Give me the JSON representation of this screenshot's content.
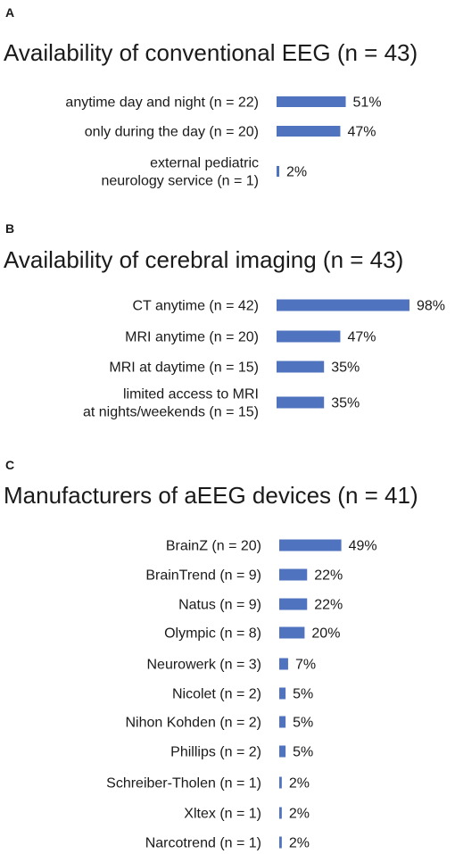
{
  "colors": {
    "bar": "#4f73be",
    "text": "#1a1a1a"
  },
  "chart_data": [
    {
      "type": "bar",
      "orientation": "horizontal",
      "panel": "A",
      "title": "Availability of conventional EEG (n = 43)",
      "categories": [
        [
          "anytime day and night (n = 22)"
        ],
        [
          "only during the day (n = 20)"
        ],
        [
          "external pediatric",
          "neurology service (n = 1)"
        ]
      ],
      "values": [
        51,
        47,
        2
      ],
      "data_labels": [
        "51%",
        "47%",
        "2%"
      ],
      "value_unit": "%",
      "xlim": [
        0,
        100
      ]
    },
    {
      "type": "bar",
      "orientation": "horizontal",
      "panel": "B",
      "title": "Availability of cerebral imaging (n = 43)",
      "categories": [
        [
          "CT anytime (n = 42)"
        ],
        [
          "MRI anytime (n = 20)"
        ],
        [
          "MRI at daytime (n = 15)"
        ],
        [
          "limited access to MRI",
          "at nights/weekends (n = 15)"
        ]
      ],
      "values": [
        98,
        47,
        35,
        35
      ],
      "data_labels": [
        "98%",
        "47%",
        "35%",
        "35%"
      ],
      "value_unit": "%",
      "xlim": [
        0,
        100
      ]
    },
    {
      "type": "bar",
      "orientation": "horizontal",
      "panel": "C",
      "title": "Manufacturers of aEEG devices (n = 41)",
      "categories": [
        [
          "BrainZ (n = 20)"
        ],
        [
          "BrainTrend (n = 9)"
        ],
        [
          "Natus (n = 9)"
        ],
        [
          "Olympic (n = 8)"
        ],
        [
          "Neurowerk (n = 3)"
        ],
        [
          "Nicolet (n = 2)"
        ],
        [
          "Nihon Kohden (n = 2)"
        ],
        [
          "Phillips (n = 2)"
        ],
        [
          "Schreiber-Tholen (n = 1)"
        ],
        [
          "Xltex (n = 1)"
        ],
        [
          "Narcotrend (n = 1)"
        ]
      ],
      "values": [
        49,
        22,
        22,
        20,
        7,
        5,
        5,
        5,
        2,
        2,
        2
      ],
      "data_labels": [
        "49%",
        "22%",
        "22%",
        "20%",
        "7%",
        "5%",
        "5%",
        "5%",
        "2%",
        "2%",
        "2%"
      ],
      "value_unit": "%",
      "xlim": [
        0,
        100
      ]
    }
  ]
}
